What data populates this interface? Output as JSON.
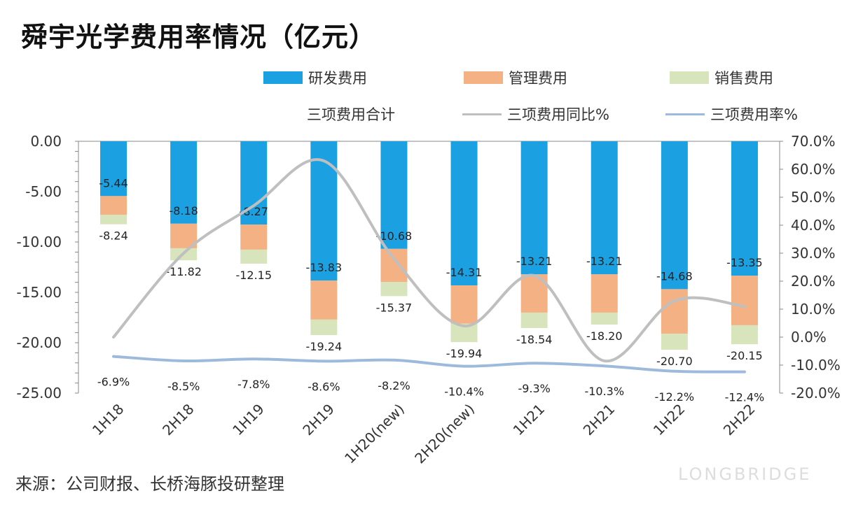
{
  "title": "舜宇光学费用率情况（亿元）",
  "source": "来源：公司财报、长桥海豚投研整理",
  "watermark": "LONGBRIDGE",
  "chart_data": {
    "type": "bar",
    "stacked": true,
    "categories": [
      "1H18",
      "2H18",
      "1H19",
      "2H19",
      "1H20(new)",
      "2H20(new)",
      "1H21",
      "2H21",
      "1H22",
      "2H22"
    ],
    "left_axis": {
      "ylim": [
        -25,
        0
      ],
      "ticks": [
        "0.00",
        "-5.00",
        "-10.00",
        "-15.00",
        "-20.00",
        "-25.00"
      ]
    },
    "right_axis": {
      "ylim": [
        -20,
        70
      ],
      "ticks": [
        "70.0%",
        "60.0%",
        "50.0%",
        "40.0%",
        "30.0%",
        "20.0%",
        "10.0%",
        "0.0%",
        "-10.0%",
        "-20.0%"
      ]
    },
    "series": [
      {
        "name": "研发费用",
        "type": "bar",
        "color": "#1ba1e2",
        "values": [
          -5.44,
          -8.18,
          -8.27,
          -13.83,
          -10.68,
          -14.31,
          -13.21,
          -13.21,
          -14.68,
          -13.35
        ]
      },
      {
        "name": "管理费用",
        "type": "bar",
        "color": "#f4b183",
        "values": [
          -1.85,
          -2.44,
          -2.49,
          -3.87,
          -3.28,
          -3.8,
          -3.8,
          -3.8,
          -4.42,
          -4.91
        ]
      },
      {
        "name": "销售费用",
        "type": "bar",
        "color": "#d8e4bc",
        "values": [
          -0.95,
          -1.2,
          -1.39,
          -1.54,
          -1.41,
          -1.83,
          -1.53,
          -1.19,
          -1.6,
          -1.89
        ]
      },
      {
        "name": "三项费用合计",
        "type": "label",
        "values": [
          -8.24,
          -11.82,
          -12.15,
          -19.24,
          -15.37,
          -19.94,
          -18.54,
          -18.2,
          -20.7,
          -20.15
        ]
      },
      {
        "name": "三项费用同比%",
        "type": "line",
        "axis": "right",
        "color": "#bfbfbf",
        "values": [
          0,
          30,
          47,
          63,
          28,
          4,
          22,
          -8.5,
          13,
          11
        ]
      },
      {
        "name": "三项费用率%",
        "type": "line",
        "axis": "right",
        "color": "#9dbadc",
        "values": [
          -6.9,
          -8.5,
          -7.8,
          -8.6,
          -8.2,
          -10.4,
          -9.3,
          -10.3,
          -12.2,
          -12.4
        ]
      }
    ],
    "legend": "top"
  }
}
